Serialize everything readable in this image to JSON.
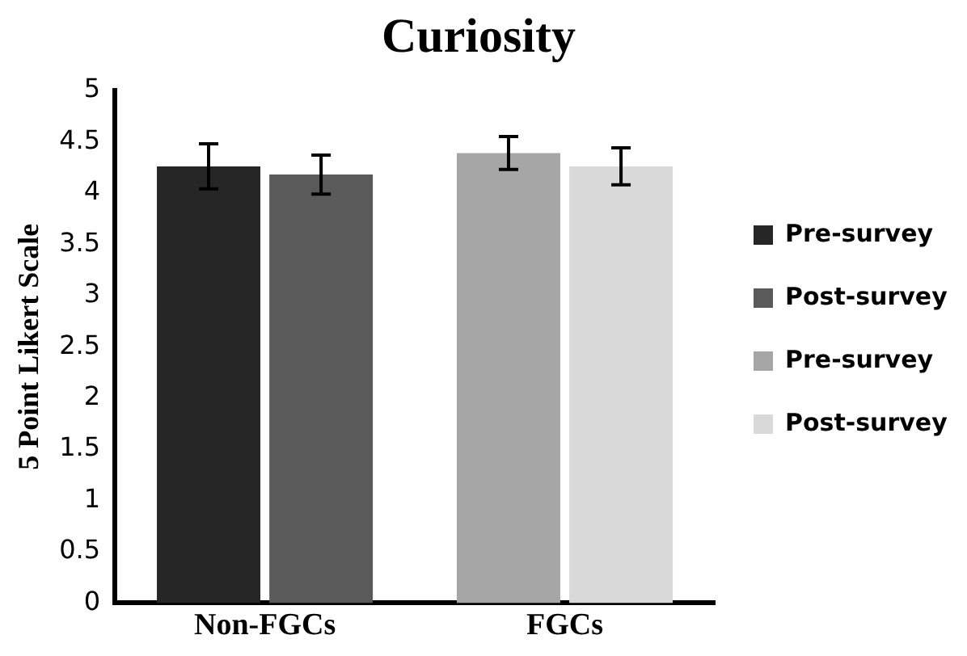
{
  "chart_data": {
    "type": "bar",
    "title": "Curiosity",
    "ylabel": "5 Point Likert Scale",
    "categories": [
      "Non-FGCs",
      "FGCs"
    ],
    "series": [
      {
        "name": "Pre-survey",
        "color": "#262626",
        "values": [
          4.26,
          null
        ],
        "errors": [
          0.22,
          null
        ]
      },
      {
        "name": "Post-survey",
        "color": "#5a5a5a",
        "values": [
          4.18,
          null
        ],
        "errors": [
          0.19,
          null
        ]
      },
      {
        "name": "Pre-survey",
        "color": "#a6a6a6",
        "values": [
          null,
          4.39
        ],
        "errors": [
          null,
          0.16
        ]
      },
      {
        "name": "Post-survey",
        "color": "#d9d9d9",
        "values": [
          null,
          4.26
        ],
        "errors": [
          null,
          0.18
        ]
      }
    ],
    "ylim": [
      0,
      5
    ],
    "yticks": [
      0,
      0.5,
      1,
      1.5,
      2,
      2.5,
      3,
      3.5,
      4,
      4.5,
      5
    ],
    "grid": false,
    "legend": "right"
  }
}
